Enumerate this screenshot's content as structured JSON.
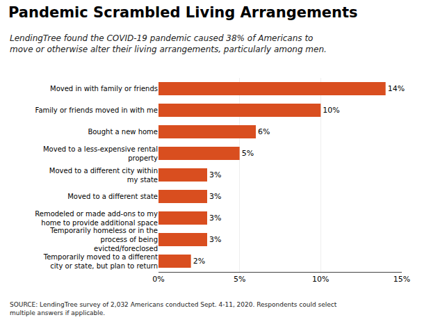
{
  "chart_data": {
    "type": "bar",
    "orientation": "horizontal",
    "title": "Pandemic Scrambled Living Arrangements",
    "subtitle": "LendingTree found the COVID-19 pandemic caused 38% of Americans to\nmove or otherwise alter their living arrangements, particularly among men.",
    "annotations": [
      "SOURCE: LendingTree survey of 2,032 Americans conducted Sept. 4-11, 2020. Respondents could select multiple answers if applicable."
    ],
    "categories": [
      "Moved in with family or friends",
      "Family or friends moved in with me",
      "Bought a new home",
      "Moved to a less-expensive rental property",
      "Moved to a different city within my state",
      "Moved to a different state",
      "Remodeled or made add-ons to my home to provide additional space",
      "Temporarily homeless or in the process of being evicted/foreclosed",
      "Temporarily moved to a different city or state, but plan to return"
    ],
    "values": [
      14,
      10,
      6,
      5,
      3,
      3,
      3,
      3,
      2
    ],
    "value_labels": [
      "14%",
      "10%",
      "6%",
      "5%",
      "3%",
      "3%",
      "3%",
      "3%",
      "2%"
    ],
    "data_labels": true,
    "color": "#D94E1F",
    "xlim": [
      0,
      15
    ],
    "xticks": [
      {
        "value": 0,
        "label": "0%"
      },
      {
        "value": 5,
        "label": "5%"
      },
      {
        "value": 10,
        "label": "10%"
      },
      {
        "value": 15,
        "label": "15%"
      }
    ],
    "grid": true
  }
}
